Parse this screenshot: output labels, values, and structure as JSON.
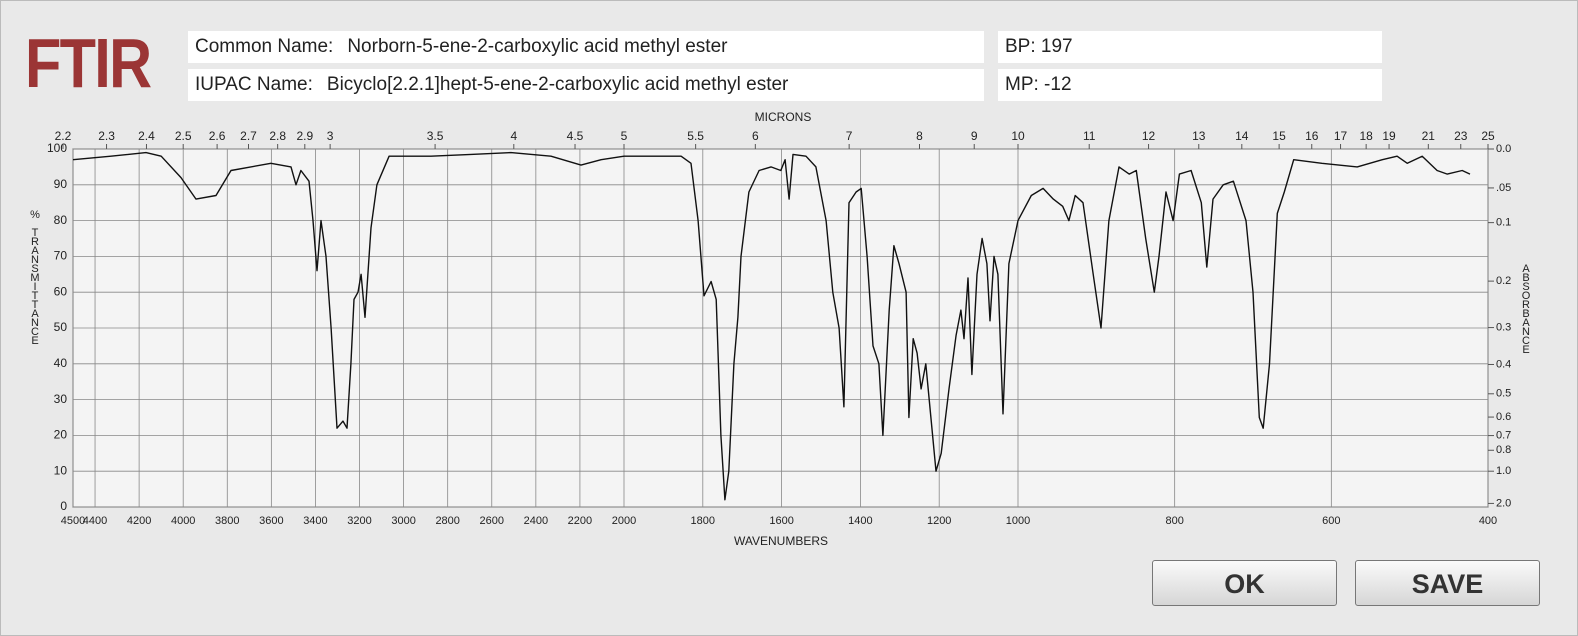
{
  "header": {
    "logo": "FTIR",
    "common_label": "Common Name:",
    "common_name": "Norborn-5-ene-2-carboxylic acid methyl ester",
    "iupac_label": "IUPAC Name:",
    "iupac_name": "Bicyclo[2.2.1]hept-5-ene-2-carboxylic acid methyl ester",
    "bp": "BP: 197",
    "mp": "MP: -12"
  },
  "buttons": [
    "OK",
    "SAVE"
  ],
  "chart_data": {
    "type": "line",
    "xlabel": "WAVENUMBERS",
    "x2label": "MICRONS",
    "ylabel": "% TRANSMITTANCE",
    "y2label": "ABSORBANCE",
    "xlim": [
      4500,
      400
    ],
    "x_scale_breaks": [
      2000,
      1000
    ],
    "xticks": [
      4500,
      4400,
      4200,
      4000,
      3800,
      3600,
      3400,
      3200,
      3000,
      2800,
      2600,
      2400,
      2200,
      2000,
      1800,
      1600,
      1400,
      1200,
      1000,
      800,
      600,
      400
    ],
    "micron_ticks": [
      2.2,
      2.3,
      2.4,
      2.5,
      2.6,
      2.7,
      2.8,
      2.9,
      3,
      3.5,
      4,
      4.5,
      5,
      5.5,
      6,
      7,
      8,
      9,
      10,
      11,
      12,
      13,
      14,
      15,
      16,
      17,
      18,
      19,
      21,
      23,
      25
    ],
    "ylim": [
      0,
      100
    ],
    "yticks": [
      0,
      10,
      20,
      30,
      40,
      50,
      60,
      70,
      80,
      90,
      100
    ],
    "y2ticks": [
      {
        "value": 0,
        "label": "0.0"
      },
      {
        "value": 0.05,
        "label": ".05"
      },
      0.1,
      0.2,
      0.3,
      0.4,
      0.5,
      0.6,
      0.7,
      0.8,
      {
        "value": 1,
        "label": "1.0"
      },
      {
        "value": 2,
        "label": "2.0"
      }
    ],
    "grid": true,
    "color": "#111111",
    "x": [
      4500,
      4328,
      4169,
      4100,
      4010,
      3942,
      3851,
      3783,
      3602,
      3511,
      3488,
      3466,
      3429,
      3411,
      3393,
      3375,
      3352,
      3329,
      3302,
      3275,
      3257,
      3239,
      3225,
      3207,
      3193,
      3175,
      3148,
      3121,
      3066,
      2876,
      2694,
      2513,
      2331,
      2195,
      2104,
      2000,
      1855,
      1830,
      1812,
      1797,
      1779,
      1766,
      1754,
      1744,
      1734,
      1721,
      1711,
      1703,
      1683,
      1657,
      1627,
      1602,
      1591,
      1581,
      1571,
      1538,
      1513,
      1487,
      1470,
      1454,
      1442,
      1429,
      1411,
      1398,
      1383,
      1368,
      1353,
      1343,
      1327,
      1315,
      1302,
      1284,
      1277,
      1266,
      1256,
      1246,
      1234,
      1221,
      1208,
      1195,
      1175,
      1157,
      1145,
      1137,
      1127,
      1117,
      1104,
      1091,
      1079,
      1071,
      1061,
      1051,
      1038,
      1023,
      1000,
      983,
      968,
      955,
      943,
      935,
      927,
      917,
      904,
      894,
      884,
      871,
      858,
      849,
      837,
      826,
      820,
      811,
      802,
      794,
      779,
      766,
      759,
      751,
      738,
      725,
      709,
      700,
      692,
      687,
      679,
      669,
      660,
      648,
      612,
      567,
      535,
      516,
      503,
      484,
      465,
      452,
      433,
      423
    ],
    "values": [
      97,
      98,
      99,
      98,
      92,
      86,
      87,
      94,
      96,
      95,
      90,
      94,
      91,
      80,
      66,
      80,
      70,
      50,
      22,
      24,
      22,
      40,
      58,
      60,
      65,
      53,
      78,
      90,
      98,
      98,
      98.5,
      99,
      98,
      95.5,
      97,
      98,
      98,
      96,
      80,
      59,
      63,
      58,
      20,
      2,
      10,
      40,
      53,
      70,
      88,
      94,
      95,
      94,
      97,
      86,
      98.5,
      98,
      95,
      80,
      60,
      50,
      28,
      85,
      88,
      89,
      70,
      45,
      40,
      20,
      55,
      73,
      68,
      60,
      25,
      47,
      43,
      33,
      40,
      25,
      10,
      15,
      33,
      48,
      55,
      47,
      64,
      37,
      65,
      75,
      68,
      52,
      70,
      65,
      26,
      68,
      80,
      87,
      89,
      86,
      84,
      80,
      87,
      85,
      65,
      50,
      80,
      95,
      93,
      94,
      75,
      60,
      70,
      88,
      80,
      93,
      94,
      85,
      67,
      86,
      90,
      91,
      80,
      60,
      25,
      22,
      40,
      82,
      88,
      97,
      96,
      95,
      97,
      98,
      96,
      98,
      94,
      93,
      94,
      93
    ]
  }
}
